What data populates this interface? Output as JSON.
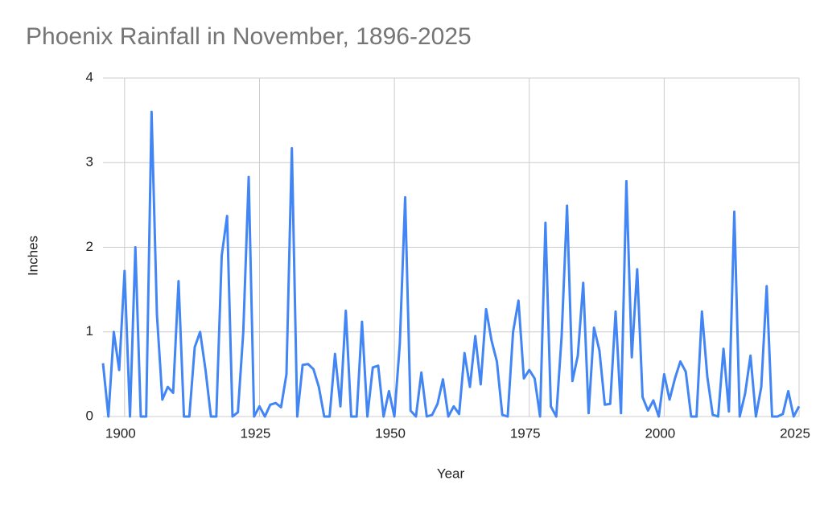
{
  "chart_data": {
    "type": "line",
    "title": "Phoenix Rainfall in November, 1896-2025",
    "x_label": "Year",
    "y_label": "Inches",
    "color": "#4285f4",
    "grid": true,
    "xlim": [
      1896,
      2025
    ],
    "xticks": [
      1900,
      1925,
      1950,
      1975,
      2000,
      2025
    ],
    "ylim": [
      0,
      4
    ],
    "yticks": [
      0,
      1,
      2,
      3,
      4
    ],
    "x": [
      1896,
      1897,
      1898,
      1899,
      1900,
      1901,
      1902,
      1903,
      1904,
      1905,
      1906,
      1907,
      1908,
      1909,
      1910,
      1911,
      1912,
      1913,
      1914,
      1915,
      1916,
      1917,
      1918,
      1919,
      1920,
      1921,
      1922,
      1923,
      1924,
      1925,
      1926,
      1927,
      1928,
      1929,
      1930,
      1931,
      1932,
      1933,
      1934,
      1935,
      1936,
      1937,
      1938,
      1939,
      1940,
      1941,
      1942,
      1943,
      1944,
      1945,
      1946,
      1947,
      1948,
      1949,
      1950,
      1951,
      1952,
      1953,
      1954,
      1955,
      1956,
      1957,
      1958,
      1959,
      1960,
      1961,
      1962,
      1963,
      1964,
      1965,
      1966,
      1967,
      1968,
      1969,
      1970,
      1971,
      1972,
      1973,
      1974,
      1975,
      1976,
      1977,
      1978,
      1979,
      1980,
      1981,
      1982,
      1983,
      1984,
      1985,
      1986,
      1987,
      1988,
      1989,
      1990,
      1991,
      1992,
      1993,
      1994,
      1995,
      1996,
      1997,
      1998,
      1999,
      2000,
      2001,
      2002,
      2003,
      2004,
      2005,
      2006,
      2007,
      2008,
      2009,
      2010,
      2011,
      2012,
      2013,
      2014,
      2015,
      2016,
      2017,
      2018,
      2019,
      2020,
      2021,
      2022,
      2023,
      2024,
      2025
    ],
    "values": [
      0.63,
      0,
      1.0,
      0.55,
      1.72,
      0,
      2.0,
      0,
      0,
      3.6,
      1.2,
      0.2,
      0.35,
      0.28,
      1.6,
      0,
      0,
      0.82,
      1.0,
      0.55,
      0,
      0,
      1.9,
      2.37,
      0,
      0.05,
      1.0,
      2.83,
      0,
      0.12,
      0,
      0.14,
      0.16,
      0.11,
      0.5,
      3.17,
      0,
      0.61,
      0.62,
      0.56,
      0.35,
      0,
      0,
      0.74,
      0.12,
      1.25,
      0,
      0,
      1.12,
      0,
      0.58,
      0.6,
      0,
      0.3,
      0,
      0.85,
      2.59,
      0.07,
      0,
      0.52,
      0,
      0.02,
      0.15,
      0.44,
      0,
      0.12,
      0.03,
      0.75,
      0.35,
      0.95,
      0.38,
      1.27,
      0.9,
      0.65,
      0.02,
      0,
      1.0,
      1.37,
      0.45,
      0.55,
      0.45,
      0,
      2.29,
      0.12,
      0,
      0.95,
      2.49,
      0.42,
      0.72,
      1.58,
      0.04,
      1.05,
      0.78,
      0.14,
      0.15,
      1.24,
      0.04,
      2.78,
      0.7,
      1.74,
      0.23,
      0.07,
      0.19,
      0,
      0.5,
      0.2,
      0.45,
      0.65,
      0.53,
      0,
      0,
      1.24,
      0.47,
      0.02,
      0,
      0.8,
      0.06,
      2.42,
      0,
      0.27,
      0.72,
      0,
      0.35,
      1.54,
      0,
      0,
      0.03,
      0.3,
      0,
      0.12
    ]
  }
}
